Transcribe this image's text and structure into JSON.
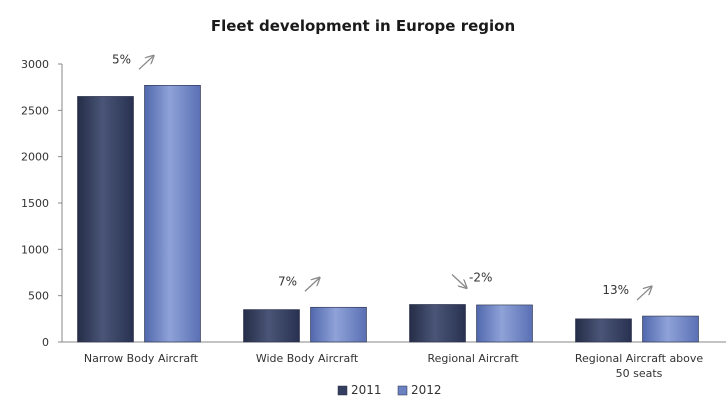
{
  "chart_data": {
    "type": "bar",
    "title": "Fleet development in Europe region",
    "categories": [
      "Narrow Body Aircraft",
      "Wide Body Aircraft",
      "Regional Aircraft",
      "Regional Aircraft above 50 seats"
    ],
    "category_lines": [
      [
        "Narrow Body Aircraft"
      ],
      [
        "Wide Body Aircraft"
      ],
      [
        "Regional Aircraft"
      ],
      [
        "Regional Aircraft above",
        "50 seats"
      ]
    ],
    "series": [
      {
        "name": "2011",
        "values": [
          2650,
          350,
          405,
          250
        ],
        "color": "#343e5e"
      },
      {
        "name": "2012",
        "values": [
          2770,
          375,
          400,
          280
        ],
        "color": "#6b81c2"
      }
    ],
    "annotations": [
      "5%",
      "7%",
      "-2%",
      "13%"
    ],
    "annotation_direction": [
      "up",
      "up",
      "down",
      "up"
    ],
    "ylim": [
      0,
      3000
    ],
    "yticks": [
      "0",
      "500",
      "1000",
      "1500",
      "2000",
      "2500",
      "3000"
    ],
    "ytick_values": [
      0,
      500,
      1000,
      1500,
      2000,
      2500,
      3000
    ],
    "grid": false,
    "legend_position": "bottom"
  }
}
